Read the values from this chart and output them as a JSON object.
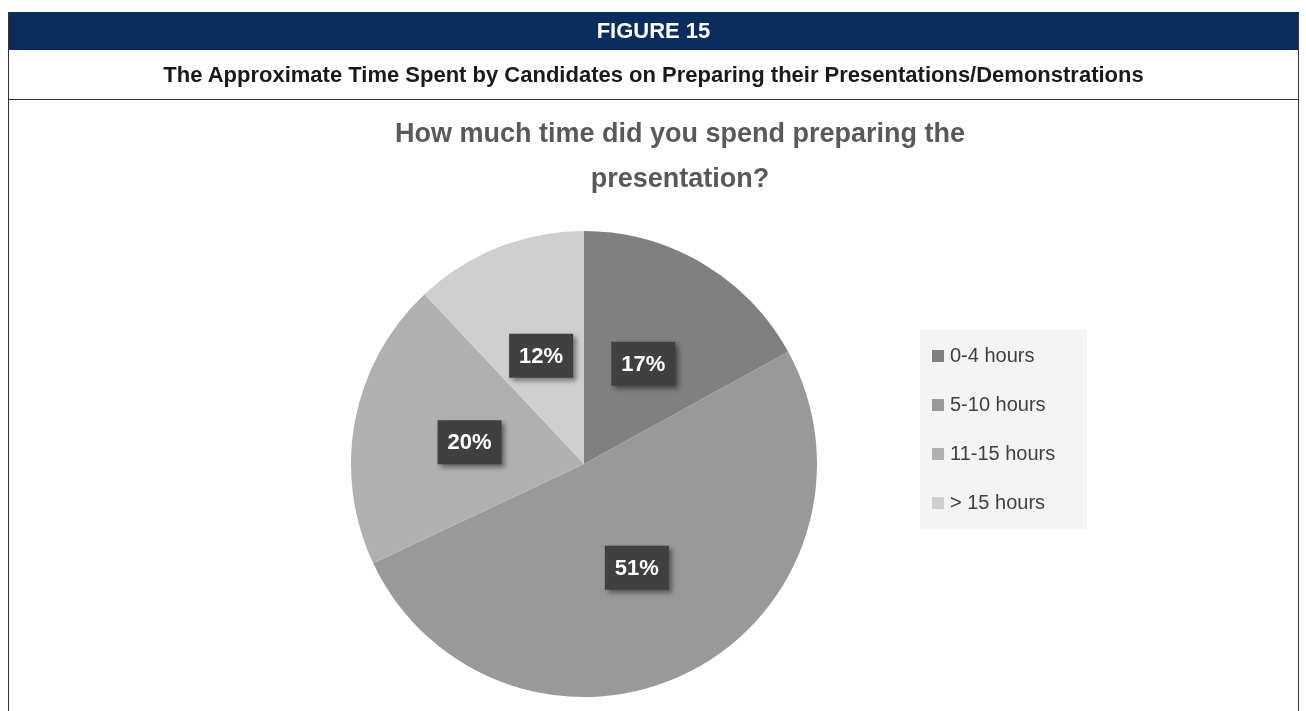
{
  "chart_data": {
    "type": "pie",
    "title": "How much time did you spend preparing the presentation?",
    "subtitle": "The Approximate Time Spent by Candidates on Preparing their Presentations/Demonstrations",
    "annotations": [
      "FIGURE 15"
    ],
    "categories": [
      "0-4 hours",
      "5-10 hours",
      "11-15 hours",
      "> 15 hours"
    ],
    "values": [
      17,
      51,
      20,
      12
    ],
    "value_labels": [
      "17%",
      "51%",
      "20%",
      "12%"
    ],
    "colors": [
      "#808080",
      "#999999",
      "#b0b0b0",
      "#cfcfcf"
    ],
    "legend": "right"
  }
}
